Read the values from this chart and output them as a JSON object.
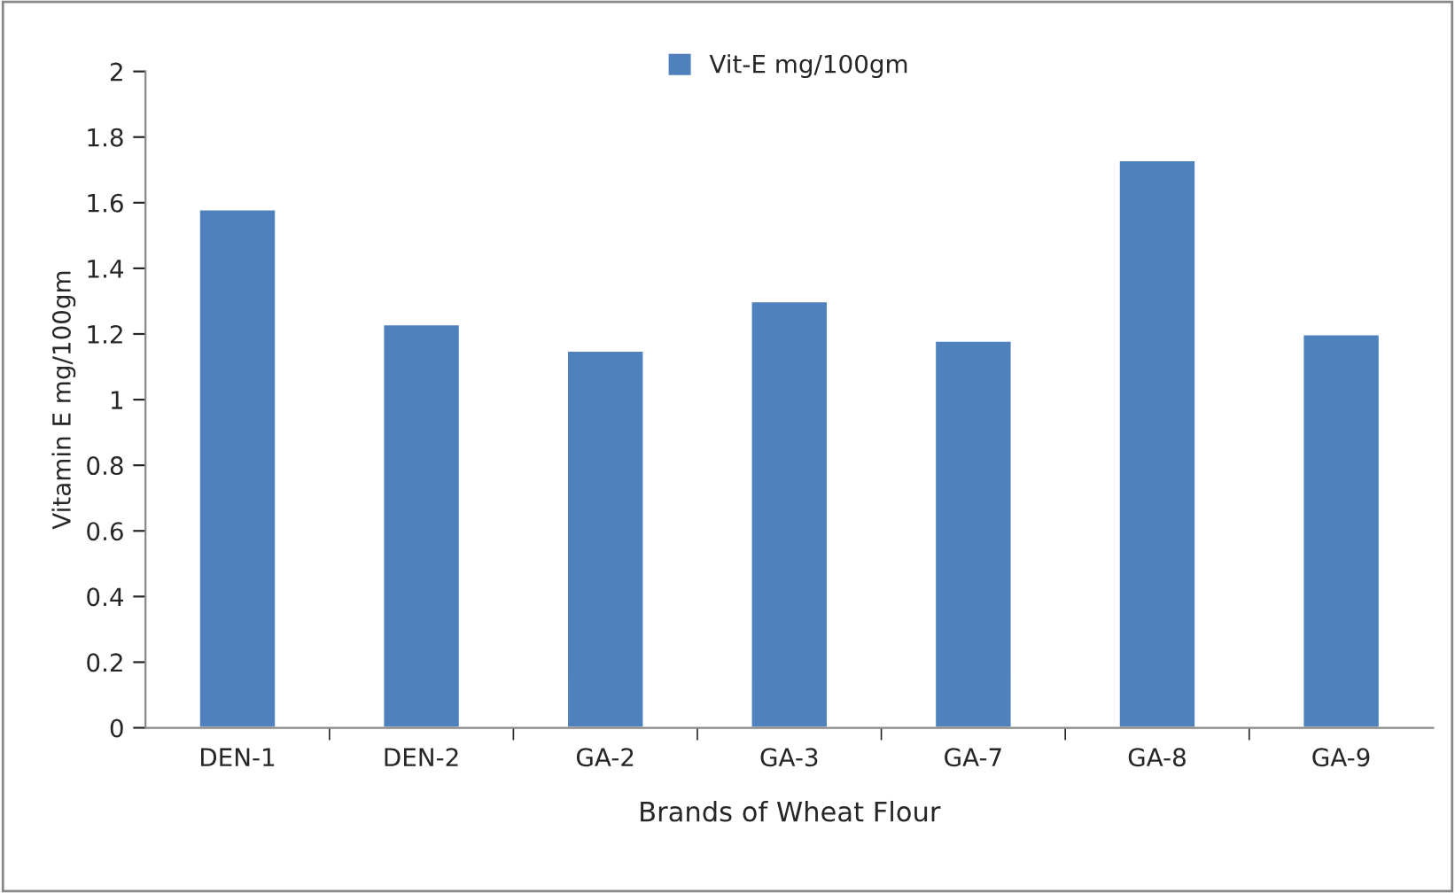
{
  "chart_data": {
    "type": "bar",
    "xlabel": "Brands of Wheat Flour",
    "ylabel": "Vitamin E mg/100gm",
    "categories": [
      "DEN-1",
      "DEN-2",
      "GA-2",
      "GA-3",
      "GA-7",
      "GA-8",
      "GA-9"
    ],
    "series": [
      {
        "name": "Vit-E mg/100gm",
        "color": "#4f81bd",
        "values": [
          1.58,
          1.23,
          1.15,
          1.3,
          1.18,
          1.73,
          1.2
        ]
      }
    ],
    "ylim": [
      0,
      2
    ],
    "yticks": [
      0,
      0.2,
      0.4,
      0.6,
      0.8,
      1,
      1.2,
      1.4,
      1.6,
      1.8,
      2
    ],
    "grid": false,
    "legend": "top"
  }
}
